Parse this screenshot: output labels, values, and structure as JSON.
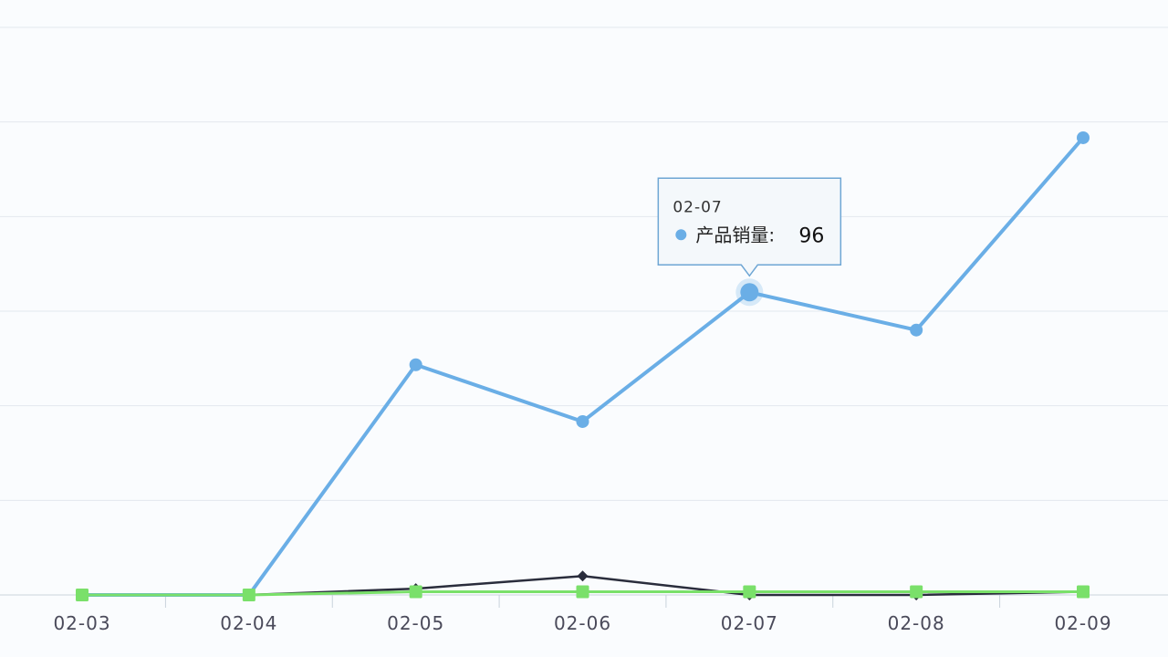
{
  "chart_data": {
    "type": "line",
    "categories": [
      "02-03",
      "02-04",
      "02-05",
      "02-06",
      "02-07",
      "02-08",
      "02-09"
    ],
    "series": [
      {
        "name": "产品销量",
        "color": "#6aaee6",
        "marker": "circle",
        "values": [
          0,
          0,
          73,
          55,
          96,
          84,
          145
        ]
      },
      {
        "color": "#2a2d3c",
        "marker": "diamond",
        "values": [
          0,
          0,
          2,
          6,
          0,
          0,
          1
        ]
      },
      {
        "color": "#7ae06a",
        "marker": "square",
        "values": [
          0,
          0,
          1,
          1,
          1,
          1,
          1
        ]
      }
    ],
    "ylim": [
      0,
      180
    ],
    "grid": true,
    "highlight_index": 4,
    "tooltip": {
      "title": "02-07",
      "series_label": "产品销量",
      "separator": ":",
      "value": "96"
    }
  }
}
